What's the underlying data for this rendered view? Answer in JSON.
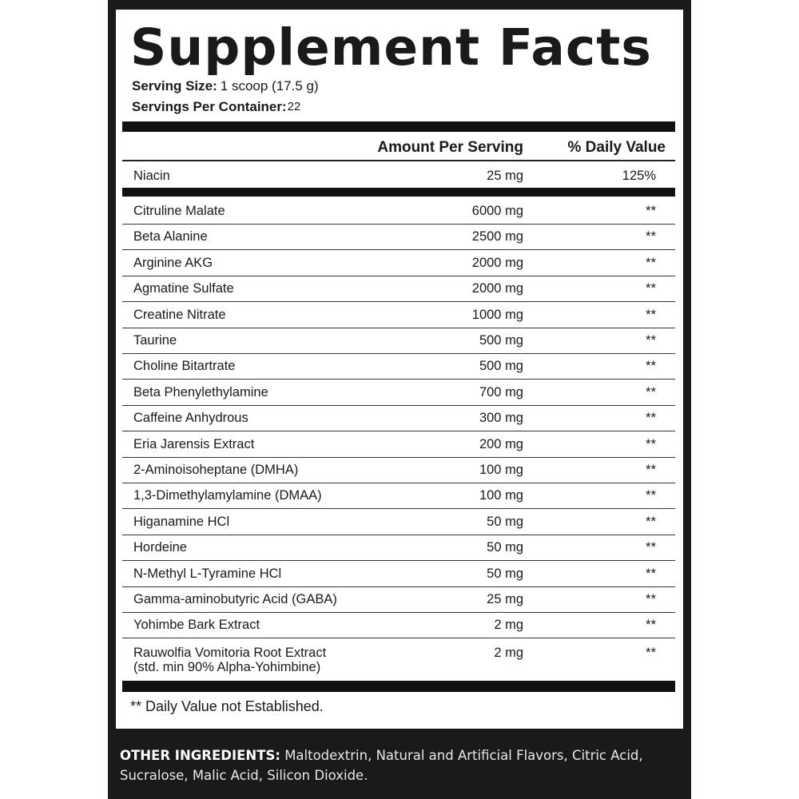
{
  "title": "Supplement Facts",
  "serving_size": {
    "label": "Serving Size:",
    "value": "1 scoop (17.5 g)"
  },
  "servings_per_container": {
    "label": "Servings Per Container:",
    "value": "22"
  },
  "headers": {
    "amount": "Amount Per Serving",
    "dv": "% Daily Value"
  },
  "niacin": {
    "name": "Niacin",
    "amount": "25 mg",
    "dv": "125%"
  },
  "ingredients": [
    {
      "name": "Citruline Malate",
      "amount": "6000 mg",
      "dv": "**"
    },
    {
      "name": "Beta Alanine",
      "amount": "2500 mg",
      "dv": "**"
    },
    {
      "name": "Arginine AKG",
      "amount": "2000 mg",
      "dv": "**"
    },
    {
      "name": "Agmatine Sulfate",
      "amount": "2000 mg",
      "dv": "**"
    },
    {
      "name": "Creatine Nitrate",
      "amount": "1000 mg",
      "dv": "**"
    },
    {
      "name": "Taurine",
      "amount": "500 mg",
      "dv": "**"
    },
    {
      "name": "Choline Bitartrate",
      "amount": "500 mg",
      "dv": "**"
    },
    {
      "name": "Beta Phenylethylamine",
      "amount": "700 mg",
      "dv": "**"
    },
    {
      "name": "Caffeine Anhydrous",
      "amount": "300 mg",
      "dv": "**"
    },
    {
      "name": "Eria Jarensis Extract",
      "amount": "200 mg",
      "dv": "**"
    },
    {
      "name": "2-Aminoisoheptane (DMHA)",
      "amount": "100 mg",
      "dv": "**"
    },
    {
      "name": "1,3-Dimethylamylamine (DMAA)",
      "amount": "100 mg",
      "dv": "**"
    },
    {
      "name": "Higanamine HCl",
      "amount": "50 mg",
      "dv": "**"
    },
    {
      "name": "Hordeine",
      "amount": "50 mg",
      "dv": "**"
    },
    {
      "name": "N-Methyl L-Tyramine HCl",
      "amount": "50 mg",
      "dv": "**"
    },
    {
      "name": "Gamma-aminobutyric Acid (GABA)",
      "amount": "25 mg",
      "dv": "**"
    },
    {
      "name": "Yohimbe Bark Extract",
      "amount": "2 mg",
      "dv": "**"
    }
  ],
  "last_ingredient": {
    "name": "Rauwolfia Vomitoria Root Extract",
    "sub": "(std. min 90% Alpha-Yohimbine)",
    "amount": "2 mg",
    "dv": "**"
  },
  "footnote": "** Daily Value not Established.",
  "other_ingredients": {
    "label": "OTHER INGREDIENTS:",
    "text": "Maltodextrin, Natural and Artificial Flavors, Citric Acid, Sucralose, Malic Acid, Silicon Dioxide."
  }
}
